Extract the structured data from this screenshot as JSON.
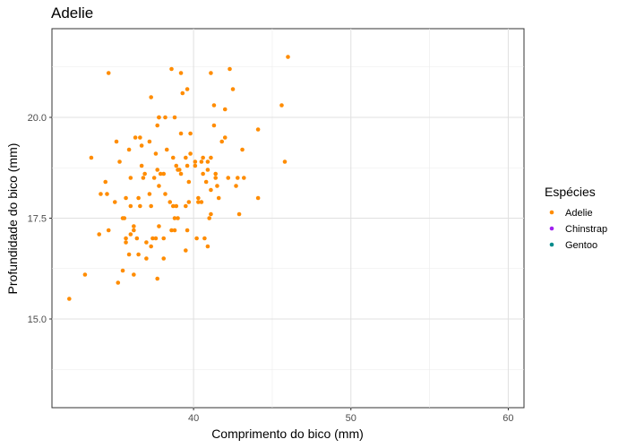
{
  "chart_data": {
    "type": "scatter",
    "title": "Adelie",
    "xlabel": "Comprimento do bico (mm)",
    "ylabel": "Profundidade do bico (mm)",
    "xlim": [
      31,
      61
    ],
    "ylim": [
      12.8,
      22.2
    ],
    "x_ticks": [
      40,
      50,
      60
    ],
    "x_tick_labels": [
      "40",
      "50",
      "60"
    ],
    "y_ticks": [
      15.0,
      17.5,
      20.0
    ],
    "y_tick_labels": [
      "15.0",
      "17.5",
      "20.0"
    ],
    "grid": true,
    "legend": {
      "title": "Espécies",
      "position": "right",
      "entries": [
        {
          "label": "Adelie",
          "color": "#FF8C00"
        },
        {
          "label": "Chinstrap",
          "color": "#A020F0"
        },
        {
          "label": "Gentoo",
          "color": "#008B8B"
        }
      ]
    },
    "series": [
      {
        "name": "Adelie",
        "color": "#FF8C00",
        "points": [
          [
            32.1,
            15.5
          ],
          [
            33.1,
            16.1
          ],
          [
            33.5,
            19.0
          ],
          [
            34.0,
            17.1
          ],
          [
            34.1,
            18.1
          ],
          [
            34.4,
            18.4
          ],
          [
            34.5,
            18.1
          ],
          [
            34.6,
            21.1
          ],
          [
            34.6,
            17.2
          ],
          [
            35.0,
            17.9
          ],
          [
            35.1,
            19.4
          ],
          [
            35.2,
            15.9
          ],
          [
            35.3,
            18.9
          ],
          [
            35.5,
            16.2
          ],
          [
            35.5,
            17.5
          ],
          [
            35.6,
            17.5
          ],
          [
            35.7,
            16.9
          ],
          [
            35.7,
            17.0
          ],
          [
            35.7,
            18.0
          ],
          [
            35.9,
            19.2
          ],
          [
            35.9,
            16.6
          ],
          [
            36.0,
            17.1
          ],
          [
            36.0,
            17.8
          ],
          [
            36.0,
            18.5
          ],
          [
            36.2,
            16.1
          ],
          [
            36.2,
            17.2
          ],
          [
            36.2,
            17.3
          ],
          [
            36.3,
            19.5
          ],
          [
            36.4,
            17.0
          ],
          [
            36.5,
            16.6
          ],
          [
            36.5,
            18.0
          ],
          [
            36.6,
            17.8
          ],
          [
            36.7,
            18.8
          ],
          [
            36.7,
            19.3
          ],
          [
            36.8,
            18.5
          ],
          [
            36.9,
            18.6
          ],
          [
            37.0,
            16.5
          ],
          [
            37.0,
            16.9
          ],
          [
            37.2,
            18.1
          ],
          [
            37.3,
            16.8
          ],
          [
            37.3,
            17.8
          ],
          [
            37.3,
            20.5
          ],
          [
            37.5,
            18.5
          ],
          [
            37.6,
            17.0
          ],
          [
            37.6,
            19.1
          ],
          [
            37.7,
            18.7
          ],
          [
            37.7,
            19.8
          ],
          [
            37.7,
            16.0
          ],
          [
            37.8,
            18.3
          ],
          [
            37.8,
            17.3
          ],
          [
            37.8,
            20.0
          ],
          [
            37.9,
            18.6
          ],
          [
            38.1,
            18.6
          ],
          [
            38.1,
            17.0
          ],
          [
            38.1,
            16.5
          ],
          [
            38.2,
            20.0
          ],
          [
            38.2,
            18.1
          ],
          [
            38.3,
            19.2
          ],
          [
            38.5,
            17.9
          ],
          [
            38.6,
            21.2
          ],
          [
            38.6,
            17.2
          ],
          [
            38.7,
            19.0
          ],
          [
            38.8,
            17.2
          ],
          [
            38.8,
            20.0
          ],
          [
            38.9,
            18.8
          ],
          [
            39.0,
            17.5
          ],
          [
            39.0,
            18.7
          ],
          [
            39.1,
            18.7
          ],
          [
            39.2,
            19.6
          ],
          [
            39.2,
            18.6
          ],
          [
            39.3,
            20.6
          ],
          [
            39.5,
            16.7
          ],
          [
            39.5,
            17.8
          ],
          [
            39.6,
            17.2
          ],
          [
            39.6,
            18.8
          ],
          [
            39.6,
            20.7
          ],
          [
            39.7,
            18.4
          ],
          [
            39.7,
            17.9
          ],
          [
            39.8,
            19.1
          ],
          [
            40.1,
            18.9
          ],
          [
            40.2,
            17.0
          ],
          [
            40.3,
            18.0
          ],
          [
            40.5,
            17.9
          ],
          [
            40.5,
            18.9
          ],
          [
            40.6,
            18.6
          ],
          [
            40.6,
            19.0
          ],
          [
            40.7,
            17.0
          ],
          [
            40.8,
            18.4
          ],
          [
            40.9,
            16.8
          ],
          [
            40.9,
            18.9
          ],
          [
            41.0,
            17.5
          ],
          [
            41.1,
            17.6
          ],
          [
            41.1,
            18.2
          ],
          [
            41.1,
            19.0
          ],
          [
            41.3,
            20.3
          ],
          [
            41.4,
            18.5
          ],
          [
            41.5,
            18.3
          ],
          [
            41.6,
            18.0
          ],
          [
            41.8,
            19.4
          ],
          [
            42.0,
            20.2
          ],
          [
            42.2,
            18.5
          ],
          [
            42.3,
            21.2
          ],
          [
            42.5,
            20.7
          ],
          [
            42.7,
            18.3
          ],
          [
            42.8,
            18.5
          ],
          [
            42.9,
            17.6
          ],
          [
            43.1,
            19.2
          ],
          [
            43.2,
            18.5
          ],
          [
            44.1,
            19.7
          ],
          [
            44.1,
            18.0
          ],
          [
            45.6,
            20.3
          ],
          [
            45.8,
            18.9
          ],
          [
            46.0,
            21.5
          ],
          [
            39.2,
            21.1
          ],
          [
            41.1,
            21.1
          ],
          [
            40.1,
            18.8
          ],
          [
            38.9,
            17.8
          ],
          [
            39.5,
            19.0
          ],
          [
            37.8,
            20.0
          ],
          [
            36.6,
            19.5
          ],
          [
            38.8,
            17.5
          ],
          [
            40.3,
            17.9
          ],
          [
            41.4,
            18.6
          ],
          [
            40.9,
            18.7
          ],
          [
            42.0,
            19.5
          ],
          [
            37.2,
            19.4
          ],
          [
            39.8,
            19.6
          ],
          [
            41.3,
            19.8
          ],
          [
            37.4,
            17.0
          ],
          [
            38.7,
            17.8
          ]
        ]
      }
    ]
  }
}
